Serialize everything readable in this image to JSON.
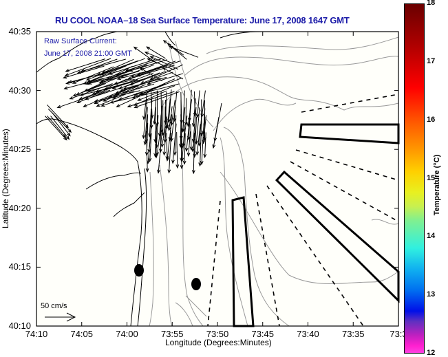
{
  "title": "RU COOL  NOAA–18  Sea Surface Temperature:  June 17, 2008 1647 GMT",
  "overlay": {
    "line1": "Raw Surface Current:",
    "line2": "June 17, 2008 21:00 GMT"
  },
  "scale_label": "50 cm/s",
  "axes": {
    "xlabel": "Longitude (Degrees:Minutes)",
    "ylabel": "Latitude (Degrees:Minutes)",
    "xticks": [
      "74:10",
      "74:05",
      "74:00",
      "73:55",
      "73:50",
      "73:45",
      "73:40",
      "73:35",
      "73:3"
    ],
    "yticks": [
      "40:35",
      "40:30",
      "40:25",
      "40:20",
      "40:15",
      "40:10"
    ]
  },
  "colorbar": {
    "label": "Temperature (°C)",
    "ticks": [
      "18",
      "17",
      "16",
      "15",
      "14",
      "13",
      "12"
    ],
    "range": [
      12,
      18
    ]
  },
  "chart_data": {
    "type": "map",
    "title": "RU COOL  NOAA–18  Sea Surface Temperature:  June 17, 2008 1647 GMT",
    "xlabel": "Longitude (Degrees:Minutes)",
    "ylabel": "Latitude (Degrees:Minutes)",
    "xlim": [
      "74:10",
      "73:30"
    ],
    "ylim": [
      "40:10",
      "40:35"
    ],
    "colorbar_range_c": [
      12,
      18
    ],
    "legend": "50 cm/s reference vector at bottom-left",
    "markers": [
      {
        "type": "filled-circle",
        "lon": "73:59",
        "lat": "40:14.7"
      },
      {
        "type": "filled-circle",
        "lon": "73:52.5",
        "lat": "40:13.5"
      }
    ]
  }
}
